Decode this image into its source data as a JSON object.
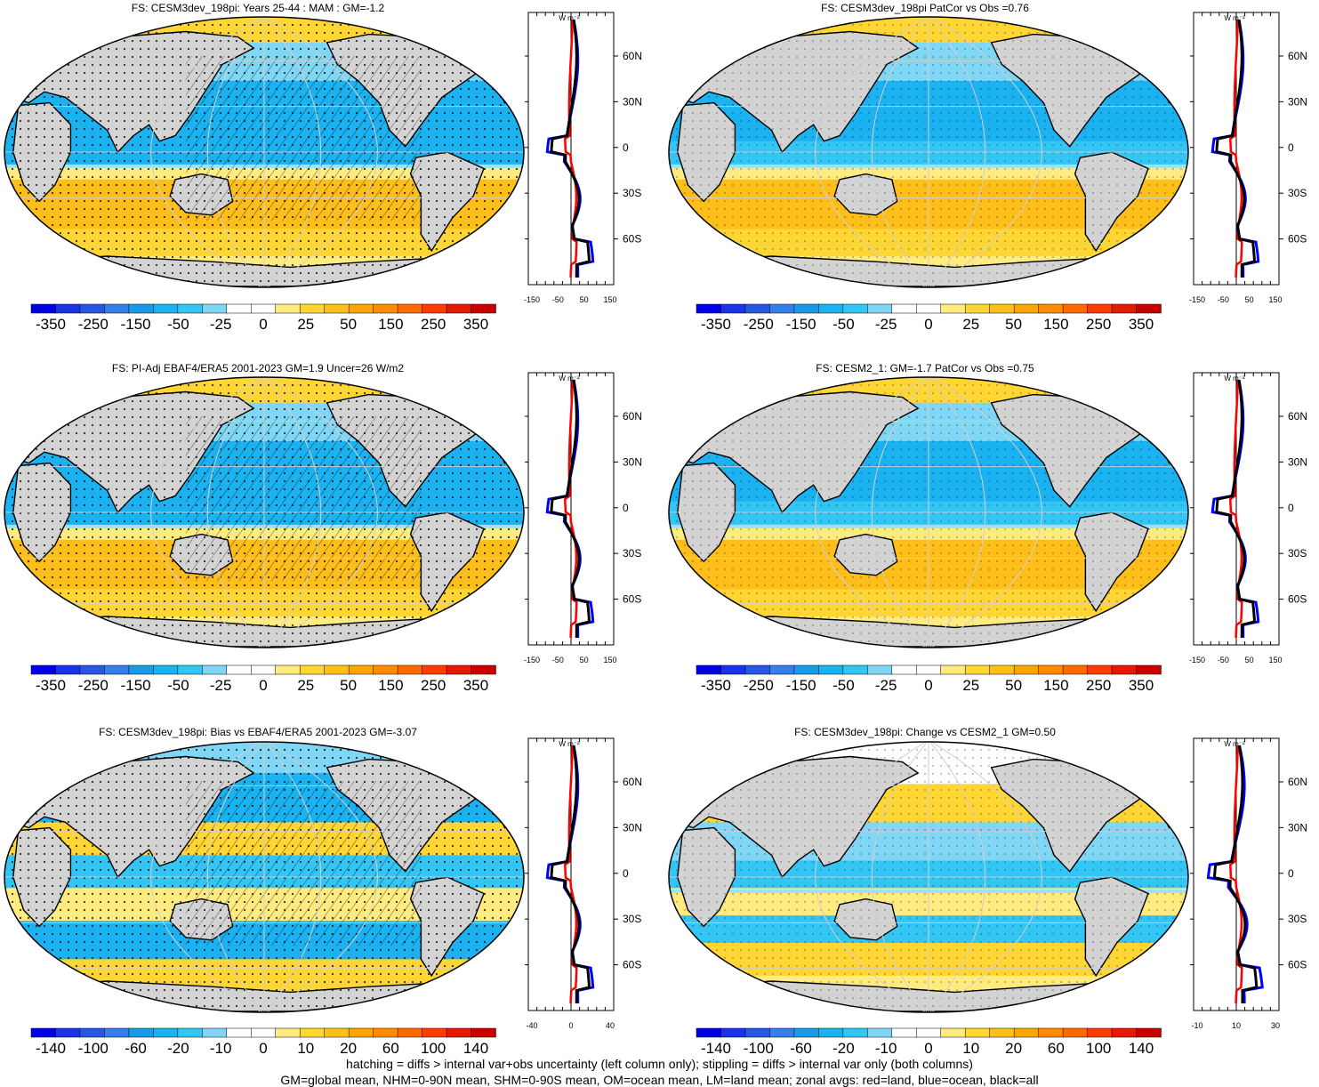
{
  "panels": [
    {
      "title": "FS: CESM3dev_198pi: Years 25-44 : MAM : GM=-1.2",
      "colorbar": [
        "-350",
        "-250",
        "-150",
        "-50",
        "-25",
        "0",
        "25",
        "50",
        "150",
        "250",
        "350"
      ],
      "zonal_ticks": [
        "-150",
        "-50",
        "50",
        "150"
      ],
      "zonal_unit": "W m⁻²",
      "lat_labels": [
        "60N",
        "30N",
        "0",
        "30S",
        "60S"
      ]
    },
    {
      "title": "FS: CESM3dev_198pi PatCor vs Obs =0.76",
      "colorbar": [
        "-350",
        "-250",
        "-150",
        "-50",
        "-25",
        "0",
        "25",
        "50",
        "150",
        "250",
        "350"
      ],
      "zonal_ticks": [
        "-150",
        "-50",
        "50",
        "150"
      ],
      "zonal_unit": "W m⁻²",
      "lat_labels": [
        "60N",
        "30N",
        "0",
        "30S",
        "60S"
      ]
    },
    {
      "title": "FS: PI-Adj EBAF4/ERA5 2001-2023 GM=1.9 Uncer=26 W/m2",
      "colorbar": [
        "-350",
        "-250",
        "-150",
        "-50",
        "-25",
        "0",
        "25",
        "50",
        "150",
        "250",
        "350"
      ],
      "zonal_ticks": [
        "-150",
        "-50",
        "50",
        "150"
      ],
      "zonal_unit": "W m⁻²",
      "lat_labels": [
        "60N",
        "30N",
        "0",
        "30S",
        "60S"
      ]
    },
    {
      "title": "FS: CESM2_1: GM=-1.7 PatCor vs Obs =0.75",
      "colorbar": [
        "-350",
        "-250",
        "-150",
        "-50",
        "-25",
        "0",
        "25",
        "50",
        "150",
        "250",
        "350"
      ],
      "zonal_ticks": [
        "-150",
        "-50",
        "50",
        "150"
      ],
      "zonal_unit": "W m⁻²",
      "lat_labels": [
        "60N",
        "30N",
        "0",
        "30S",
        "60S"
      ]
    },
    {
      "title": "FS: CESM3dev_198pi: Bias vs EBAF4/ERA5 2001-2023 GM=-3.07",
      "colorbar": [
        "-140",
        "-100",
        "-60",
        "-20",
        "-10",
        "0",
        "10",
        "20",
        "60",
        "100",
        "140"
      ],
      "zonal_ticks": [
        "-40",
        "0",
        "40"
      ],
      "zonal_unit": "W m⁻²",
      "lat_labels": [
        "60N",
        "30N",
        "0",
        "30S",
        "60S"
      ]
    },
    {
      "title": "FS: CESM3dev_198pi: Change vs CESM2_1 GM=0.50",
      "colorbar": [
        "-140",
        "-100",
        "-60",
        "-20",
        "-10",
        "0",
        "10",
        "20",
        "60",
        "100",
        "140"
      ],
      "zonal_ticks": [
        "-10",
        "10",
        "30"
      ],
      "zonal_unit": "W m⁻²",
      "lat_labels": [
        "60N",
        "30N",
        "0",
        "30S",
        "60S"
      ]
    }
  ],
  "colors": {
    "scale": [
      "#0000e6",
      "#1a33e6",
      "#2659e0",
      "#3380e6",
      "#1a99e6",
      "#1ab2f0",
      "#33c6f5",
      "#80d6f5",
      "#ffffff",
      "#ffffff",
      "#ffeb80",
      "#ffd633",
      "#ffbf1a",
      "#ffa500",
      "#ff8c00",
      "#ff6a00",
      "#ff3c00",
      "#e61a00",
      "#c80000"
    ],
    "land": "#d3d3d3",
    "ocean_blue": "#33b5f0",
    "ocean_orange": "#ffb819",
    "zonal_land": "#ff0000",
    "zonal_ocean": "#0000ff",
    "zonal_all": "#000000"
  },
  "footnotes": [
    "hatching = diffs > internal var+obs uncertainty (left column only); stippling = diffs > internal var only (both columns)",
    "GM=global mean, NHM=0-90N mean, SHM=0-90S mean, OM=ocean mean, LM=land mean; zonal avgs: red=land, blue=ocean, black=all"
  ]
}
